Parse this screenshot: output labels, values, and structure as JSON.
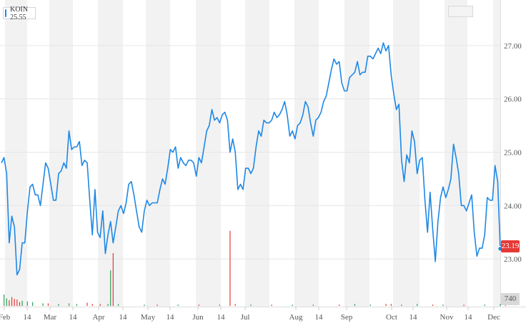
{
  "legend": {
    "label": "KOIN 25.55",
    "color": "#1e88e5"
  },
  "last_price_label": "23.19",
  "volume_label": "740",
  "colors": {
    "line": "#1e88e5",
    "price_badge": "#e53935",
    "band": "#f2f2f2",
    "volume_up": "#2e9e58",
    "volume_down": "#e53935"
  },
  "chart_data": {
    "type": "line",
    "title": "",
    "xlabel": "",
    "ylabel": "",
    "ylim": [
      22.6,
      27.6
    ],
    "y_ticks": [
      "27.00",
      "26.00",
      "25.00",
      "24.00",
      "23.00"
    ],
    "x_ticks": [
      "Feb",
      "14",
      "Mar",
      "14",
      "Apr",
      "14",
      "May",
      "14",
      "Jun",
      "14",
      "Jul",
      "Aug",
      "14",
      "Sep",
      "Oct",
      "14",
      "Nov",
      "14",
      "Dec"
    ],
    "grid": true,
    "legend_position": "top-left",
    "last_value": 23.19,
    "series": [
      {
        "name": "KOIN",
        "y": [
          24.8,
          24.9,
          24.6,
          23.3,
          23.8,
          23.6,
          22.7,
          22.8,
          23.3,
          23.3,
          23.9,
          24.35,
          24.4,
          24.2,
          24.2,
          24.0,
          24.4,
          24.8,
          24.7,
          24.4,
          24.1,
          24.1,
          24.6,
          24.65,
          24.8,
          24.7,
          25.4,
          25.05,
          25.1,
          25.1,
          25.2,
          24.75,
          24.85,
          24.8,
          24.1,
          23.45,
          24.3,
          23.5,
          23.4,
          23.9,
          23.1,
          23.45,
          23.7,
          23.3,
          23.6,
          23.9,
          24.0,
          23.85,
          24.05,
          24.4,
          24.45,
          24.2,
          23.9,
          23.6,
          23.5,
          23.9,
          24.1,
          24.0,
          24.05,
          24.05,
          24.05,
          24.3,
          24.5,
          24.4,
          24.7,
          25.05,
          25.0,
          25.1,
          24.7,
          24.9,
          24.8,
          24.75,
          24.85,
          24.85,
          24.8,
          24.55,
          24.9,
          24.8,
          25.1,
          25.4,
          25.5,
          25.8,
          25.6,
          25.65,
          25.55,
          25.7,
          25.75,
          25.6,
          25.0,
          25.25,
          25.0,
          24.3,
          24.4,
          24.3,
          24.7,
          24.7,
          24.6,
          24.7,
          25.1,
          25.4,
          25.3,
          25.6,
          25.55,
          25.55,
          25.6,
          25.75,
          25.65,
          25.7,
          25.8,
          25.95,
          25.7,
          25.3,
          25.4,
          25.25,
          25.5,
          25.55,
          25.7,
          25.95,
          25.85,
          25.55,
          25.3,
          25.6,
          25.65,
          25.75,
          25.95,
          26.05,
          26.3,
          26.55,
          26.75,
          26.65,
          26.7,
          26.3,
          26.15,
          26.15,
          26.4,
          26.45,
          26.5,
          26.7,
          26.45,
          26.5,
          26.5,
          26.8,
          26.8,
          26.75,
          26.85,
          26.95,
          26.85,
          27.05,
          26.9,
          27.0,
          26.45,
          26.1,
          25.8,
          25.9,
          24.85,
          24.45,
          24.95,
          24.8,
          25.4,
          25.2,
          24.6,
          24.85,
          24.9,
          24.1,
          23.5,
          24.25,
          23.55,
          22.95,
          23.7,
          24.15,
          24.35,
          24.15,
          24.3,
          24.5,
          25.15,
          24.9,
          24.6,
          24.0,
          24.0,
          23.9,
          24.05,
          24.2,
          23.5,
          23.05,
          23.2,
          23.2,
          23.45,
          24.15,
          24.1,
          24.1,
          24.75,
          24.45,
          23.19
        ]
      }
    ],
    "volume": [
      {
        "index": 1,
        "value": 180,
        "dir": "up"
      },
      {
        "index": 2,
        "value": 120,
        "dir": "up"
      },
      {
        "index": 3,
        "value": 90,
        "dir": "down"
      },
      {
        "index": 4,
        "value": 140,
        "dir": "down"
      },
      {
        "index": 5,
        "value": 110,
        "dir": "down"
      },
      {
        "index": 6,
        "value": 100,
        "dir": "down"
      },
      {
        "index": 7,
        "value": 60,
        "dir": "down"
      },
      {
        "index": 8,
        "value": 80,
        "dir": "up"
      },
      {
        "index": 10,
        "value": 70,
        "dir": "up"
      },
      {
        "index": 12,
        "value": 60,
        "dir": "up"
      },
      {
        "index": 16,
        "value": 40,
        "dir": "up"
      },
      {
        "index": 18,
        "value": 40,
        "dir": "down"
      },
      {
        "index": 22,
        "value": 30,
        "dir": "up"
      },
      {
        "index": 26,
        "value": 40,
        "dir": "up"
      },
      {
        "index": 29,
        "value": 30,
        "dir": "up"
      },
      {
        "index": 33,
        "value": 50,
        "dir": "down"
      },
      {
        "index": 35,
        "value": 30,
        "dir": "down"
      },
      {
        "index": 38,
        "value": 30,
        "dir": "down"
      },
      {
        "index": 41,
        "value": 30,
        "dir": "up"
      },
      {
        "index": 42,
        "value": 560,
        "dir": "up"
      },
      {
        "index": 43,
        "value": 830,
        "dir": "down"
      },
      {
        "index": 45,
        "value": 30,
        "dir": "up"
      },
      {
        "index": 55,
        "value": 20,
        "dir": "up"
      },
      {
        "index": 60,
        "value": 20,
        "dir": "down"
      },
      {
        "index": 68,
        "value": 20,
        "dir": "up"
      },
      {
        "index": 76,
        "value": 20,
        "dir": "down"
      },
      {
        "index": 84,
        "value": 20,
        "dir": "up"
      },
      {
        "index": 88,
        "value": 1180,
        "dir": "down"
      },
      {
        "index": 90,
        "value": 30,
        "dir": "down"
      },
      {
        "index": 96,
        "value": 20,
        "dir": "up"
      },
      {
        "index": 104,
        "value": 20,
        "dir": "down"
      },
      {
        "index": 112,
        "value": 20,
        "dir": "up"
      },
      {
        "index": 120,
        "value": 20,
        "dir": "up"
      },
      {
        "index": 130,
        "value": 20,
        "dir": "down"
      },
      {
        "index": 136,
        "value": 30,
        "dir": "up"
      },
      {
        "index": 142,
        "value": 20,
        "dir": "up"
      },
      {
        "index": 148,
        "value": 30,
        "dir": "down"
      },
      {
        "index": 150,
        "value": 30,
        "dir": "down"
      },
      {
        "index": 154,
        "value": 20,
        "dir": "up"
      },
      {
        "index": 160,
        "value": 30,
        "dir": "up"
      },
      {
        "index": 166,
        "value": 20,
        "dir": "down"
      },
      {
        "index": 170,
        "value": 20,
        "dir": "up"
      },
      {
        "index": 178,
        "value": 20,
        "dir": "down"
      },
      {
        "index": 186,
        "value": 20,
        "dir": "up"
      },
      {
        "index": 192,
        "value": 30,
        "dir": "up"
      },
      {
        "index": 194,
        "value": 20,
        "dir": "down"
      }
    ]
  }
}
